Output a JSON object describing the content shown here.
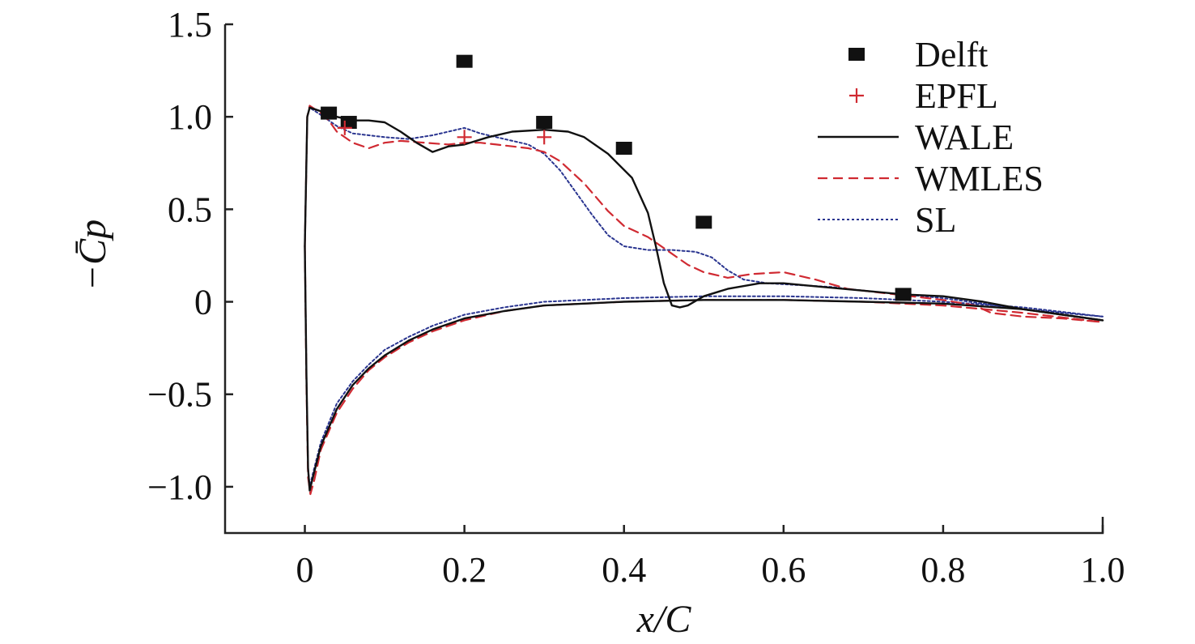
{
  "chart_data": {
    "type": "line",
    "title": "",
    "xlabel": "x/C",
    "ylabel": "−C̄p",
    "xlim": [
      -0.1,
      1.0
    ],
    "ylim": [
      -1.25,
      1.5
    ],
    "x_ticks": [
      0,
      0.2,
      0.4,
      0.6,
      0.8,
      1.0
    ],
    "x_tick_labels": [
      "0",
      "0.2",
      "0.4",
      "0.6",
      "0.8",
      "1.0"
    ],
    "y_ticks": [
      1.5,
      1.0,
      0.5,
      0,
      -0.5,
      -1.0
    ],
    "y_tick_labels": [
      "1.5",
      "1.0",
      "0.5",
      "0",
      "−0.5",
      "−1.0"
    ],
    "grid": false,
    "legend_position": "top-right",
    "series": [
      {
        "name": "Delft",
        "kind": "scatter",
        "marker": "square",
        "color": "#111111",
        "points": [
          [
            0.03,
            1.02
          ],
          [
            0.055,
            0.97
          ],
          [
            0.2,
            1.3
          ],
          [
            0.3,
            0.97
          ],
          [
            0.4,
            0.83
          ],
          [
            0.5,
            0.43
          ],
          [
            0.75,
            0.04
          ]
        ]
      },
      {
        "name": "EPFL",
        "kind": "scatter",
        "marker": "plus",
        "color": "#d02a32",
        "points": [
          [
            0.05,
            0.94
          ],
          [
            0.2,
            0.89
          ],
          [
            0.3,
            0.89
          ]
        ]
      },
      {
        "name": "WALE",
        "kind": "line",
        "dash": "solid",
        "color": "#111111",
        "upper": [
          [
            0.0,
            0.3
          ],
          [
            0.003,
            1.0
          ],
          [
            0.006,
            1.05
          ],
          [
            0.02,
            1.03
          ],
          [
            0.04,
            1.0
          ],
          [
            0.06,
            0.98
          ],
          [
            0.08,
            0.98
          ],
          [
            0.1,
            0.97
          ],
          [
            0.12,
            0.92
          ],
          [
            0.14,
            0.86
          ],
          [
            0.16,
            0.81
          ],
          [
            0.18,
            0.84
          ],
          [
            0.2,
            0.85
          ],
          [
            0.23,
            0.89
          ],
          [
            0.26,
            0.92
          ],
          [
            0.3,
            0.93
          ],
          [
            0.33,
            0.92
          ],
          [
            0.35,
            0.89
          ],
          [
            0.38,
            0.8
          ],
          [
            0.41,
            0.67
          ],
          [
            0.43,
            0.48
          ],
          [
            0.44,
            0.3
          ],
          [
            0.45,
            0.1
          ],
          [
            0.46,
            -0.02
          ],
          [
            0.47,
            -0.03
          ],
          [
            0.48,
            -0.02
          ],
          [
            0.5,
            0.03
          ],
          [
            0.53,
            0.07
          ],
          [
            0.57,
            0.1
          ],
          [
            0.6,
            0.1
          ],
          [
            0.65,
            0.08
          ],
          [
            0.7,
            0.06
          ],
          [
            0.75,
            0.04
          ],
          [
            0.8,
            0.03
          ],
          [
            0.85,
            0.0
          ],
          [
            0.9,
            -0.04
          ],
          [
            0.95,
            -0.07
          ],
          [
            1.0,
            -0.1
          ]
        ],
        "lower": [
          [
            0.0,
            0.3
          ],
          [
            0.002,
            -0.4
          ],
          [
            0.004,
            -0.9
          ],
          [
            0.006,
            -1.02
          ],
          [
            0.01,
            -0.95
          ],
          [
            0.02,
            -0.78
          ],
          [
            0.04,
            -0.58
          ],
          [
            0.06,
            -0.45
          ],
          [
            0.08,
            -0.36
          ],
          [
            0.1,
            -0.29
          ],
          [
            0.13,
            -0.21
          ],
          [
            0.16,
            -0.15
          ],
          [
            0.2,
            -0.09
          ],
          [
            0.25,
            -0.05
          ],
          [
            0.3,
            -0.02
          ],
          [
            0.35,
            -0.01
          ],
          [
            0.4,
            0.0
          ],
          [
            0.5,
            0.01
          ],
          [
            0.6,
            0.01
          ],
          [
            0.7,
            0.0
          ],
          [
            0.8,
            -0.01
          ],
          [
            0.9,
            -0.04
          ],
          [
            1.0,
            -0.1
          ]
        ]
      },
      {
        "name": "WMLES",
        "kind": "line",
        "dash": "dashed",
        "color": "#d02a32",
        "upper": [
          [
            0.0,
            0.3
          ],
          [
            0.003,
            1.0
          ],
          [
            0.006,
            1.06
          ],
          [
            0.02,
            1.02
          ],
          [
            0.03,
            0.98
          ],
          [
            0.04,
            0.92
          ],
          [
            0.06,
            0.86
          ],
          [
            0.08,
            0.83
          ],
          [
            0.1,
            0.86
          ],
          [
            0.12,
            0.87
          ],
          [
            0.15,
            0.86
          ],
          [
            0.18,
            0.85
          ],
          [
            0.2,
            0.86
          ],
          [
            0.22,
            0.86
          ],
          [
            0.24,
            0.85
          ],
          [
            0.26,
            0.84
          ],
          [
            0.28,
            0.83
          ],
          [
            0.3,
            0.81
          ],
          [
            0.32,
            0.76
          ],
          [
            0.35,
            0.64
          ],
          [
            0.38,
            0.49
          ],
          [
            0.4,
            0.41
          ],
          [
            0.43,
            0.35
          ],
          [
            0.46,
            0.26
          ],
          [
            0.48,
            0.2
          ],
          [
            0.5,
            0.16
          ],
          [
            0.53,
            0.13
          ],
          [
            0.56,
            0.15
          ],
          [
            0.6,
            0.16
          ],
          [
            0.64,
            0.12
          ],
          [
            0.68,
            0.07
          ],
          [
            0.72,
            0.05
          ],
          [
            0.76,
            0.03
          ],
          [
            0.8,
            0.01
          ],
          [
            0.84,
            -0.02
          ],
          [
            0.86,
            -0.06
          ],
          [
            0.9,
            -0.08
          ],
          [
            0.95,
            -0.09
          ],
          [
            1.0,
            -0.11
          ]
        ],
        "lower": [
          [
            0.0,
            0.3
          ],
          [
            0.002,
            -0.45
          ],
          [
            0.004,
            -0.95
          ],
          [
            0.007,
            -1.04
          ],
          [
            0.012,
            -0.96
          ],
          [
            0.02,
            -0.8
          ],
          [
            0.04,
            -0.6
          ],
          [
            0.06,
            -0.47
          ],
          [
            0.08,
            -0.37
          ],
          [
            0.1,
            -0.3
          ],
          [
            0.13,
            -0.22
          ],
          [
            0.16,
            -0.16
          ],
          [
            0.2,
            -0.1
          ],
          [
            0.25,
            -0.05
          ],
          [
            0.3,
            -0.02
          ],
          [
            0.35,
            -0.01
          ],
          [
            0.4,
            0.0
          ],
          [
            0.5,
            0.01
          ],
          [
            0.6,
            0.01
          ],
          [
            0.7,
            0.0
          ],
          [
            0.8,
            -0.02
          ],
          [
            0.9,
            -0.06
          ],
          [
            1.0,
            -0.11
          ]
        ]
      },
      {
        "name": "SL",
        "kind": "line",
        "dash": "dotted",
        "color": "#2a3590",
        "upper": [
          [
            0.0,
            0.3
          ],
          [
            0.003,
            1.0
          ],
          [
            0.006,
            1.05
          ],
          [
            0.02,
            1.01
          ],
          [
            0.04,
            0.95
          ],
          [
            0.06,
            0.91
          ],
          [
            0.08,
            0.9
          ],
          [
            0.1,
            0.89
          ],
          [
            0.13,
            0.88
          ],
          [
            0.16,
            0.9
          ],
          [
            0.18,
            0.92
          ],
          [
            0.2,
            0.94
          ],
          [
            0.22,
            0.91
          ],
          [
            0.25,
            0.88
          ],
          [
            0.28,
            0.85
          ],
          [
            0.3,
            0.8
          ],
          [
            0.32,
            0.71
          ],
          [
            0.34,
            0.59
          ],
          [
            0.36,
            0.47
          ],
          [
            0.38,
            0.36
          ],
          [
            0.4,
            0.3
          ],
          [
            0.43,
            0.28
          ],
          [
            0.46,
            0.28
          ],
          [
            0.49,
            0.27
          ],
          [
            0.51,
            0.24
          ],
          [
            0.53,
            0.17
          ],
          [
            0.55,
            0.12
          ],
          [
            0.58,
            0.1
          ],
          [
            0.62,
            0.09
          ],
          [
            0.66,
            0.08
          ],
          [
            0.7,
            0.06
          ],
          [
            0.75,
            0.04
          ],
          [
            0.8,
            0.02
          ],
          [
            0.85,
            -0.01
          ],
          [
            0.9,
            -0.04
          ],
          [
            0.95,
            -0.06
          ],
          [
            1.0,
            -0.08
          ]
        ],
        "lower": [
          [
            0.0,
            0.3
          ],
          [
            0.002,
            -0.4
          ],
          [
            0.004,
            -0.9
          ],
          [
            0.006,
            -1.0
          ],
          [
            0.01,
            -0.93
          ],
          [
            0.02,
            -0.76
          ],
          [
            0.04,
            -0.55
          ],
          [
            0.06,
            -0.43
          ],
          [
            0.08,
            -0.34
          ],
          [
            0.1,
            -0.26
          ],
          [
            0.13,
            -0.19
          ],
          [
            0.16,
            -0.13
          ],
          [
            0.2,
            -0.07
          ],
          [
            0.25,
            -0.03
          ],
          [
            0.3,
            0.0
          ],
          [
            0.35,
            0.01
          ],
          [
            0.4,
            0.02
          ],
          [
            0.5,
            0.03
          ],
          [
            0.6,
            0.03
          ],
          [
            0.7,
            0.02
          ],
          [
            0.8,
            0.0
          ],
          [
            0.9,
            -0.03
          ],
          [
            1.0,
            -0.08
          ]
        ]
      }
    ]
  }
}
